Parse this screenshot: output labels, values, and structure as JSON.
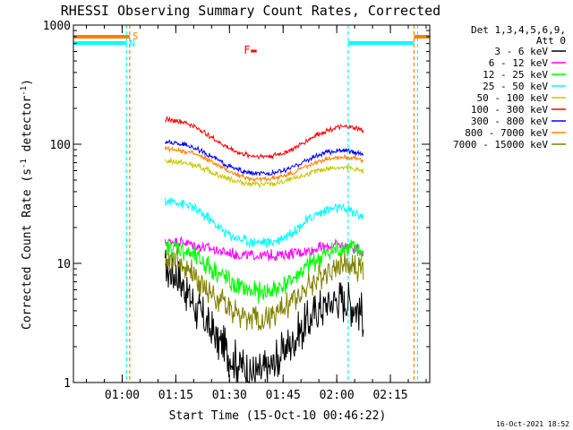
{
  "chart_data": {
    "type": "line",
    "title": "RHESSI Observing Summary Count Rates, Corrected",
    "xlabel": "Start Time (15-Oct-10 00:46:22)",
    "ylabel": "Corrected Count Rate (s",
    "ylabel_sup": "-1",
    "ylabel_mid": " detector",
    "ylabel_tail": ")",
    "y_scale": "log",
    "ylim": [
      1,
      1000
    ],
    "xlim_minutes": [
      46.37,
      146.0
    ],
    "y_ticks": [
      {
        "value": 1,
        "label": "1"
      },
      {
        "value": 10,
        "label": "10"
      },
      {
        "value": 100,
        "label": "100"
      },
      {
        "value": 1000,
        "label": "1000"
      }
    ],
    "x_ticks": [
      {
        "value": 60,
        "label": "01:00"
      },
      {
        "value": 75,
        "label": "01:15"
      },
      {
        "value": 90,
        "label": "01:30"
      },
      {
        "value": 105,
        "label": "01:45"
      },
      {
        "value": 120,
        "label": "02:00"
      },
      {
        "value": 135,
        "label": "02:15"
      }
    ],
    "legend_header": [
      "Det 1,3,4,5,6,9,",
      "Att 0"
    ],
    "legend_placement": "right",
    "flags": [
      {
        "label": "S",
        "color": "#ff8000"
      },
      {
        "label": "N",
        "color": "#00ffff"
      },
      {
        "label": "F",
        "color": "#ff0000"
      }
    ],
    "series": [
      {
        "name": "3 - 6 keV",
        "color": "#000000",
        "x": [
          72,
          75,
          78,
          81,
          84,
          87,
          90,
          93,
          96,
          99,
          102,
          105,
          108,
          111,
          114,
          117,
          120,
          123,
          126,
          127.6
        ],
        "y": [
          9,
          8,
          6,
          4,
          3,
          2.2,
          1.7,
          1.4,
          1.2,
          1.2,
          1.4,
          1.8,
          2.3,
          3,
          3.8,
          4.5,
          5,
          4.8,
          4.2,
          3.5
        ]
      },
      {
        "name": "6 - 12 keV",
        "color": "#ff00ff",
        "x": [
          72,
          75,
          78,
          81,
          84,
          87,
          90,
          93,
          96,
          99,
          102,
          105,
          108,
          111,
          114,
          117,
          120,
          123,
          126,
          127.6
        ],
        "y": [
          15,
          15.5,
          15,
          14,
          13.5,
          12.8,
          12.2,
          11.8,
          11.6,
          11.6,
          11.7,
          11.9,
          12.2,
          12.6,
          13.2,
          13.8,
          14.2,
          14,
          13,
          12
        ]
      },
      {
        "name": "12 - 25 keV",
        "color": "#00ff00",
        "x": [
          72,
          75,
          78,
          81,
          84,
          87,
          90,
          93,
          96,
          99,
          102,
          105,
          108,
          111,
          114,
          117,
          120,
          123,
          126,
          127.6
        ],
        "y": [
          13,
          13.5,
          12.5,
          11,
          9.5,
          8.2,
          7,
          6.2,
          5.8,
          5.7,
          5.9,
          6.5,
          7.5,
          9,
          10.5,
          12,
          13,
          13.5,
          13,
          12
        ]
      },
      {
        "name": "25 - 50 keV",
        "color": "#00ffff",
        "x": [
          72,
          75,
          78,
          81,
          84,
          87,
          90,
          93,
          96,
          99,
          102,
          105,
          108,
          111,
          114,
          117,
          120,
          123,
          126,
          127.6
        ],
        "y": [
          33,
          33,
          31,
          28,
          24,
          20,
          17.5,
          16,
          15.2,
          15,
          15.3,
          16.5,
          19,
          22,
          25.5,
          28,
          29,
          28,
          26,
          24
        ]
      },
      {
        "name": "50 - 100 keV",
        "color": "#c8c800",
        "x": [
          72,
          75,
          78,
          81,
          84,
          87,
          90,
          93,
          96,
          99,
          102,
          105,
          108,
          111,
          114,
          117,
          120,
          123,
          126,
          127.6
        ],
        "y": [
          72,
          71,
          69,
          65,
          60,
          55,
          51,
          48,
          46.5,
          46,
          46.5,
          48,
          51,
          55,
          59,
          62,
          64,
          63,
          61,
          58
        ]
      },
      {
        "name": "100 - 300 keV",
        "color": "#ff0000",
        "x": [
          72,
          75,
          78,
          81,
          84,
          87,
          90,
          93,
          96,
          99,
          102,
          105,
          108,
          111,
          114,
          117,
          120,
          123,
          126,
          127.6
        ],
        "y": [
          162,
          158,
          150,
          137,
          120,
          104,
          92,
          84,
          80,
          79,
          80,
          84,
          92,
          104,
          118,
          130,
          138,
          140,
          135,
          128
        ]
      },
      {
        "name": "300 - 800 keV",
        "color": "#0000ff",
        "x": [
          72,
          75,
          78,
          81,
          84,
          87,
          90,
          93,
          96,
          99,
          102,
          105,
          108,
          111,
          114,
          117,
          120,
          123,
          126,
          127.6
        ],
        "y": [
          104,
          102,
          98,
          91,
          82,
          73,
          65,
          60,
          57,
          56.5,
          57,
          60,
          65,
          72,
          79,
          85,
          88,
          88,
          85,
          81
        ]
      },
      {
        "name": "800 - 7000 keV",
        "color": "#ff8000",
        "x": [
          72,
          75,
          78,
          81,
          84,
          87,
          90,
          93,
          96,
          99,
          102,
          105,
          108,
          111,
          114,
          117,
          120,
          123,
          126,
          127.6
        ],
        "y": [
          92,
          90,
          87,
          81,
          74,
          66,
          59,
          54,
          51.5,
          51,
          51.5,
          54,
          58,
          64,
          70,
          75,
          78,
          78,
          75,
          72
        ]
      },
      {
        "name": "7000 - 15000 keV",
        "color": "#808000",
        "x": [
          72,
          75,
          78,
          81,
          84,
          87,
          90,
          93,
          96,
          99,
          102,
          105,
          108,
          111,
          114,
          117,
          120,
          123,
          126,
          127.6
        ],
        "y": [
          11,
          10.5,
          9,
          7.5,
          6,
          5,
          4.2,
          3.7,
          3.4,
          3.4,
          3.6,
          4.1,
          5,
          6,
          7.2,
          8.5,
          9.5,
          9.8,
          9.2,
          8.2
        ]
      }
    ],
    "saa_markers": [
      {
        "minute": 61.2,
        "color": "#00ffff"
      },
      {
        "minute": 62.1,
        "color": "#ff8000"
      },
      {
        "minute": 123.2,
        "color": "#00ffff"
      },
      {
        "minute": 141.6,
        "color": "#ff8000"
      },
      {
        "minute": 142.6,
        "color": "#00ffff"
      }
    ]
  },
  "footer": {
    "timestamp": "16-Oct-2021 18:52"
  }
}
